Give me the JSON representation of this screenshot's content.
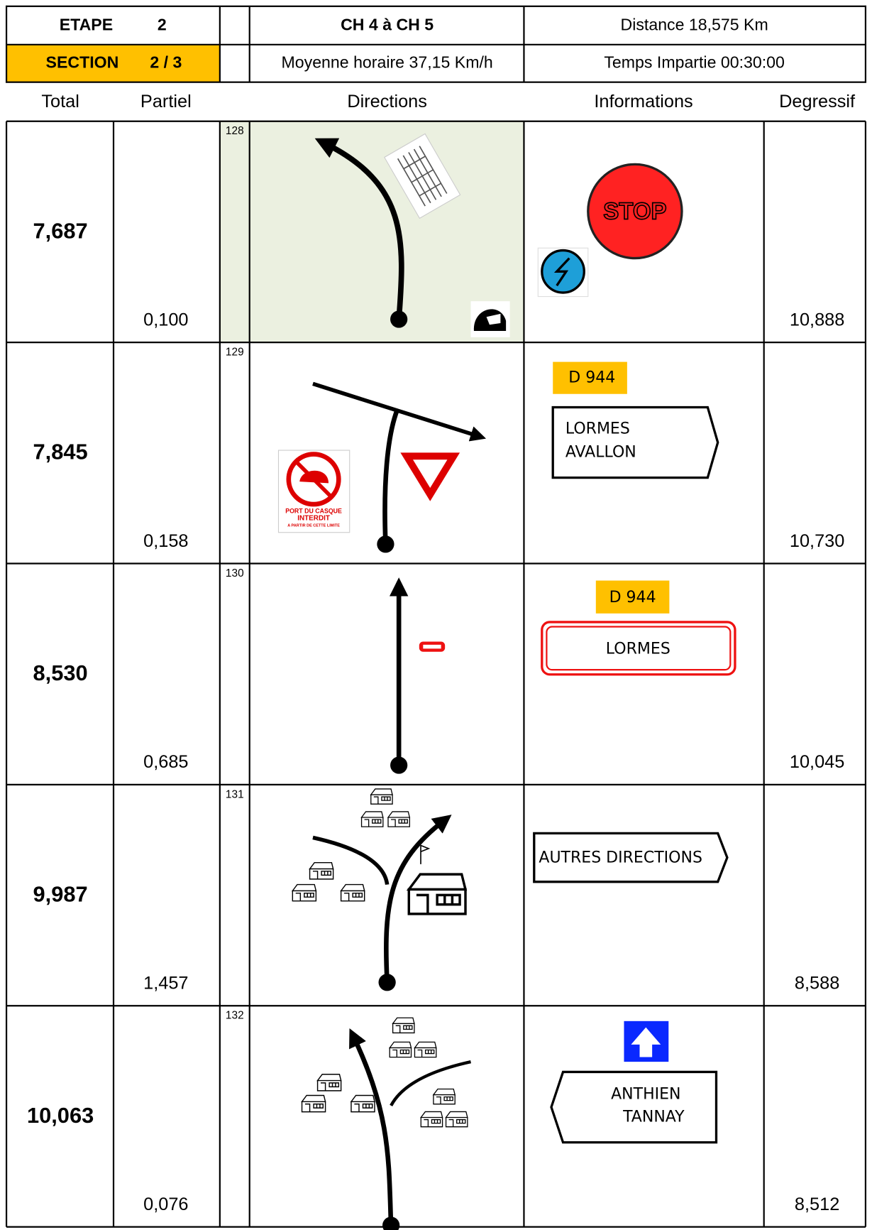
{
  "header": {
    "etape_label": "ETAPE",
    "etape": "2",
    "section_label": "SECTION",
    "section": "2 / 3",
    "title": "CH 4 à CH 5",
    "distance": "Distance 18,575 Km",
    "moyenne": "Moyenne horaire 37,15 Km/h",
    "temps": "Temps Impartie 00:30:00"
  },
  "columns": [
    "Total",
    "Partiel",
    "Directions",
    "Informations",
    "Degressif"
  ],
  "rows": [
    {
      "number": "128",
      "total": "7,687",
      "partiel": "0,100",
      "degressif": "10,888",
      "signs": [
        "STOP"
      ]
    },
    {
      "number": "129",
      "total": "7,845",
      "partiel": "0,158",
      "degressif": "10,730",
      "signs": [
        "D 944",
        "LORMES",
        "AVALLON",
        "PORT DU CASQUE",
        "INTERDIT",
        "A PARTIR DE CETTE LIMITE"
      ]
    },
    {
      "number": "130",
      "total": "8,530",
      "partiel": "0,685",
      "degressif": "10,045",
      "signs": [
        "D 944",
        "LORMES"
      ]
    },
    {
      "number": "131",
      "total": "9,987",
      "partiel": "1,457",
      "degressif": "8,588",
      "signs": [
        "AUTRES DIRECTIONS"
      ]
    },
    {
      "number": "132",
      "total": "10,063",
      "partiel": "0,076",
      "degressif": "8,512",
      "signs": [
        "ANTHIEN",
        "TANNAY"
      ]
    }
  ]
}
